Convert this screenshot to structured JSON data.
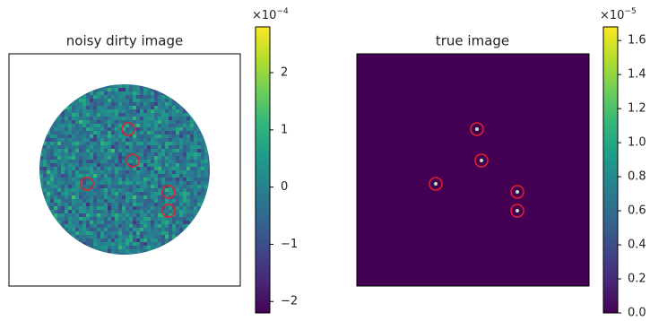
{
  "chart_data": [
    {
      "type": "image",
      "title": "noisy dirty image",
      "colormap": "viridis",
      "clim": [
        -2.2,
        2.8
      ],
      "cticks": [
        {
          "value": -2,
          "label": "−2"
        },
        {
          "value": -1,
          "label": "−1"
        },
        0,
        1,
        2
      ],
      "multiplier": {
        "base": "×10",
        "exponent": "−4"
      }
    },
    {
      "type": "image",
      "title": "true image",
      "colormap": "viridis",
      "clim": [
        0,
        1.68
      ],
      "cticks": [
        {
          "value": 0,
          "label": "0.0"
        },
        {
          "value": 0.2,
          "label": "0.2"
        },
        {
          "value": 0.4,
          "label": "0.4"
        },
        {
          "value": 0.6,
          "label": "0.6"
        },
        {
          "value": 0.8,
          "label": "0.8"
        },
        {
          "value": 1.0,
          "label": "1.0"
        },
        {
          "value": 1.2,
          "label": "1.2"
        },
        {
          "value": 1.4,
          "label": "1.4"
        },
        {
          "value": 1.6,
          "label": "1.6"
        }
      ],
      "multiplier": {
        "base": "×10",
        "exponent": "−5"
      }
    }
  ]
}
